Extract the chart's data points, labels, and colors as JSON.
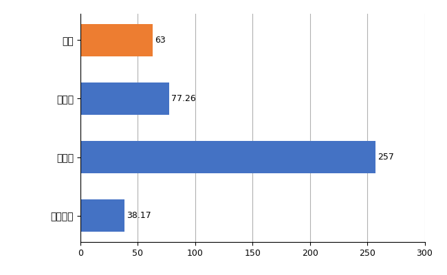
{
  "categories": [
    "全国平均",
    "県最大",
    "県平均",
    "緑区"
  ],
  "values": [
    38.17,
    257,
    77.26,
    63
  ],
  "colors": [
    "#4472c4",
    "#4472c4",
    "#4472c4",
    "#ed7d31"
  ],
  "xlim": [
    0,
    300
  ],
  "xticks": [
    0,
    50,
    100,
    150,
    200,
    250,
    300
  ],
  "bar_labels": [
    "38.17",
    "257",
    "77.26",
    "63"
  ],
  "label_offsets": [
    2,
    2,
    2,
    2
  ],
  "background_color": "#ffffff",
  "grid_color": "#b0b0b0",
  "bar_height": 0.55,
  "label_fontsize": 9,
  "tick_fontsize": 9,
  "ytick_fontsize": 10
}
